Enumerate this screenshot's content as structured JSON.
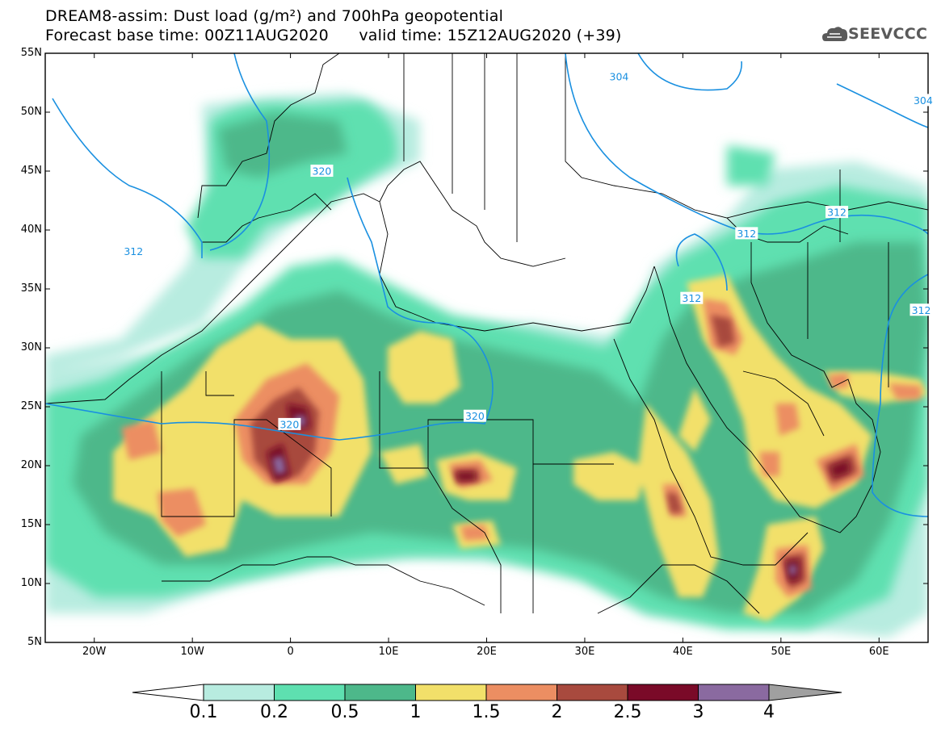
{
  "title": {
    "line1": "DREAM8-assim: Dust load (g/m²) and 700hPa geopotential",
    "line2": "Forecast base time: 00Z11AUG2020      valid time: 15Z12AUG2020 (+39)"
  },
  "logo": {
    "text": "SEEVCCC",
    "icon": "cloud-icon"
  },
  "axes": {
    "lat_labels": [
      "55N",
      "50N",
      "45N",
      "40N",
      "35N",
      "30N",
      "25N",
      "20N",
      "15N",
      "10N",
      "5N"
    ],
    "lon_labels": [
      "20W",
      "10W",
      "0",
      "10E",
      "20E",
      "30E",
      "40E",
      "50E",
      "60E"
    ],
    "lat_range": [
      5,
      55
    ],
    "lon_range": [
      -25,
      65
    ]
  },
  "contour_labels": [
    {
      "text": "304",
      "lon": 33.5,
      "lat": 53.0
    },
    {
      "text": "304",
      "lon": 64.5,
      "lat": 51.0
    },
    {
      "text": "320",
      "lon": 3.2,
      "lat": 45.0
    },
    {
      "text": "312",
      "lon": -16.0,
      "lat": 38.2
    },
    {
      "text": "312",
      "lon": 46.5,
      "lat": 39.7
    },
    {
      "text": "312",
      "lon": 55.7,
      "lat": 41.5
    },
    {
      "text": "312",
      "lon": 40.9,
      "lat": 34.2
    },
    {
      "text": "312",
      "lon": 64.3,
      "lat": 33.2
    },
    {
      "text": "320",
      "lon": -0.1,
      "lat": 23.5
    },
    {
      "text": "320",
      "lon": 18.8,
      "lat": 24.2
    }
  ],
  "colorbar": {
    "labels": [
      "0.1",
      "0.2",
      "0.5",
      "1",
      "1.5",
      "2",
      "2.5",
      "3",
      "4"
    ],
    "colors": [
      "#b8ece0",
      "#5ee0b0",
      "#4db88a",
      "#f2e06a",
      "#ec8e62",
      "#a84a3e",
      "#7a0a28",
      "#8a6aa0"
    ],
    "under_color": "#ffffff",
    "over_color": "#a0a0a0"
  },
  "colors": {
    "geopotential_line": "#1a90e0",
    "border_line": "#000000"
  }
}
